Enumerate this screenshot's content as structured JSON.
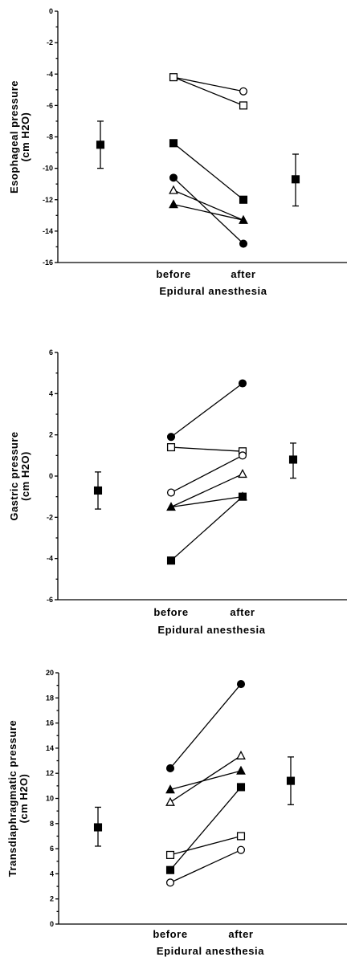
{
  "chart_data": [
    {
      "type": "scatter",
      "ylabel": [
        "Esophageal  pressure",
        "(cm H2O)"
      ],
      "ylim": [
        -16,
        0
      ],
      "yticks": [
        0,
        -2,
        -4,
        -6,
        -8,
        -10,
        -12,
        -14,
        -16
      ],
      "xcategories": [
        "before",
        "after"
      ],
      "xlabel": "Epidural  anesthesia",
      "pairs": [
        {
          "marker": "open-circle",
          "before": null,
          "after": -5.1
        },
        {
          "marker": "open-square",
          "before": -4.2,
          "after": -6.0
        },
        {
          "marker": "filled-square",
          "before": -8.4,
          "after": -12.0
        },
        {
          "marker": "filled-circle",
          "before": -10.6,
          "after": -14.8
        },
        {
          "marker": "filled-triangle",
          "before": -12.3,
          "after": -13.3
        },
        {
          "marker": "open-triangle",
          "before": -11.4,
          "after": null
        }
      ],
      "open_circle_before_hidden": -4.2,
      "summary": [
        {
          "position": "left",
          "mean": -8.5,
          "lower": -10.0,
          "upper": -7.0
        },
        {
          "position": "right",
          "mean": -10.7,
          "lower": -12.4,
          "upper": -9.1
        }
      ]
    },
    {
      "type": "scatter",
      "ylabel": [
        "Gastric  pressure",
        "(cm H2O)"
      ],
      "ylim": [
        -6,
        6
      ],
      "yticks": [
        6,
        4,
        2,
        0,
        -2,
        -4,
        -6
      ],
      "xcategories": [
        "before",
        "after"
      ],
      "xlabel": "Epidural  anesthesia",
      "pairs": [
        {
          "marker": "filled-circle",
          "before": 1.9,
          "after": 4.5
        },
        {
          "marker": "open-square",
          "before": 1.4,
          "after": 1.2
        },
        {
          "marker": "open-circle",
          "before": -0.8,
          "after": 1.0
        },
        {
          "marker": "open-triangle",
          "before": null,
          "after": 0.1
        },
        {
          "marker": "filled-triangle",
          "before": -1.5,
          "after": -1.0
        },
        {
          "marker": "filled-square",
          "before": -4.1,
          "after": -1.0
        }
      ],
      "summary": [
        {
          "position": "left",
          "mean": -0.7,
          "lower": -1.6,
          "upper": 0.2
        },
        {
          "position": "right",
          "mean": 0.8,
          "lower": -0.1,
          "upper": 1.6
        }
      ]
    },
    {
      "type": "scatter",
      "ylabel": [
        "Transdiaphragmatic  pressure",
        "(cm H2O)"
      ],
      "ylim": [
        0,
        20
      ],
      "yticks": [
        20,
        18,
        16,
        14,
        12,
        10,
        8,
        6,
        4,
        2,
        0
      ],
      "xcategories": [
        "before",
        "after"
      ],
      "xlabel": "Epidural  anesthesia",
      "pairs": [
        {
          "marker": "filled-circle",
          "before": 12.4,
          "after": 19.1
        },
        {
          "marker": "open-triangle",
          "before": 9.7,
          "after": 13.4
        },
        {
          "marker": "filled-triangle",
          "before": 10.7,
          "after": 12.2
        },
        {
          "marker": "filled-square",
          "before": 4.3,
          "after": 10.9
        },
        {
          "marker": "open-square",
          "before": 5.5,
          "after": 7.0
        },
        {
          "marker": "open-circle",
          "before": 3.3,
          "after": 5.9
        }
      ],
      "summary": [
        {
          "position": "left",
          "mean": 7.7,
          "lower": 6.2,
          "upper": 9.3
        },
        {
          "position": "right",
          "mean": 11.4,
          "lower": 9.5,
          "upper": 13.3
        }
      ]
    }
  ]
}
